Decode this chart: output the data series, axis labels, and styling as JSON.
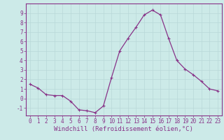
{
  "x": [
    0,
    1,
    2,
    3,
    4,
    5,
    6,
    7,
    8,
    9,
    10,
    11,
    12,
    13,
    14,
    15,
    16,
    17,
    18,
    19,
    20,
    21,
    22,
    23
  ],
  "y": [
    1.5,
    1.1,
    0.4,
    0.3,
    0.3,
    -0.3,
    -1.2,
    -1.3,
    -1.5,
    -0.8,
    2.2,
    5.0,
    6.3,
    7.5,
    8.8,
    9.3,
    8.8,
    6.3,
    4.0,
    3.1,
    2.5,
    1.8,
    1.0,
    0.8
  ],
  "xlim": [
    -0.5,
    23.5
  ],
  "ylim": [
    -1.8,
    10.0
  ],
  "yticks": [
    -1,
    0,
    1,
    2,
    3,
    4,
    5,
    6,
    7,
    8,
    9
  ],
  "xticks": [
    0,
    1,
    2,
    3,
    4,
    5,
    6,
    7,
    8,
    9,
    10,
    11,
    12,
    13,
    14,
    15,
    16,
    17,
    18,
    19,
    20,
    21,
    22,
    23
  ],
  "xlabel": "Windchill (Refroidissement éolien,°C)",
  "line_color": "#883388",
  "marker": "+",
  "marker_size": 3,
  "marker_linewidth": 0.8,
  "background_color": "#cceae8",
  "grid_color": "#b8d8d8",
  "spine_color": "#883388",
  "tick_color": "#883388",
  "label_color": "#883388",
  "tick_fontsize": 5.5,
  "xlabel_fontsize": 6.5,
  "linewidth": 0.9
}
